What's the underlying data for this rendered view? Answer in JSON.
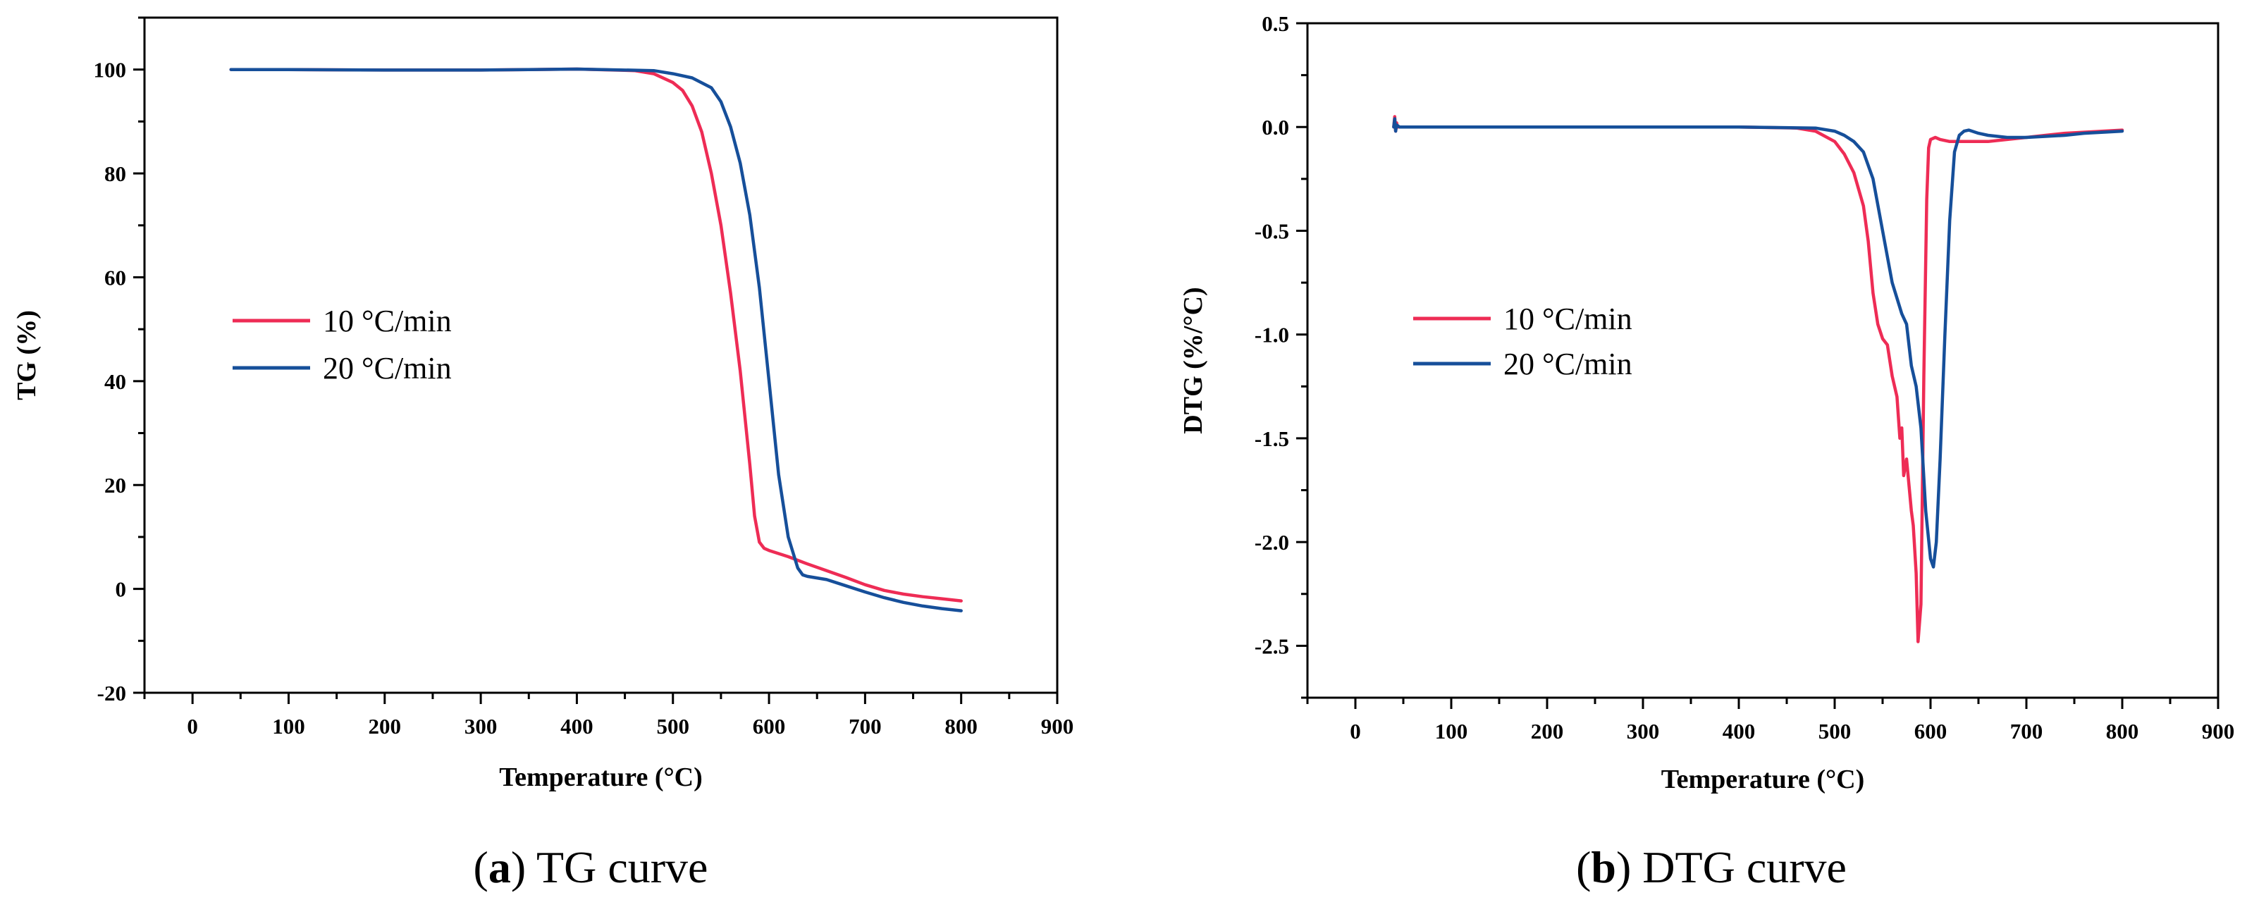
{
  "chart_data": [
    {
      "id": "a",
      "type": "line",
      "caption": {
        "letter": "a",
        "text": "TG curve"
      },
      "xlabel": "Temperature (°C)",
      "ylabel": "TG (%)",
      "xlim": [
        -50,
        900
      ],
      "ylim": [
        -20,
        110
      ],
      "xticks": [
        0,
        100,
        200,
        300,
        400,
        500,
        600,
        700,
        800,
        900
      ],
      "yticks": [
        -20,
        0,
        20,
        40,
        60,
        80,
        100
      ],
      "xtick_labels": [
        "0",
        "100",
        "200",
        "300",
        "400",
        "500",
        "600",
        "700",
        "800",
        "900"
      ],
      "ytick_labels": [
        "-20",
        "0",
        "20",
        "40",
        "60",
        "80",
        "100"
      ],
      "legend_position": "center-left",
      "series": [
        {
          "name": "10 °C/min",
          "color": "#ee2c55",
          "x": [
            40,
            100,
            200,
            300,
            400,
            460,
            480,
            500,
            510,
            520,
            530,
            540,
            550,
            560,
            570,
            580,
            585,
            590,
            595,
            600,
            610,
            620,
            640,
            660,
            680,
            700,
            720,
            740,
            760,
            780,
            800
          ],
          "y": [
            100,
            100,
            99.9,
            99.9,
            100.1,
            99.8,
            99.2,
            97.5,
            96,
            93,
            88,
            80,
            70,
            57,
            42,
            24,
            14,
            9,
            7.8,
            7.4,
            6.8,
            6.2,
            4.8,
            3.5,
            2.2,
            0.8,
            -0.3,
            -1,
            -1.5,
            -1.9,
            -2.3
          ]
        },
        {
          "name": "20 °C/min",
          "color": "#164f9a",
          "x": [
            40,
            100,
            200,
            300,
            400,
            480,
            500,
            520,
            540,
            550,
            560,
            570,
            580,
            590,
            600,
            610,
            620,
            630,
            635,
            640,
            660,
            680,
            700,
            720,
            740,
            760,
            780,
            800
          ],
          "y": [
            100,
            100,
            99.9,
            99.9,
            100.1,
            99.8,
            99.2,
            98.4,
            96.5,
            93.8,
            89,
            82,
            72,
            58,
            40,
            22,
            10,
            4,
            2.7,
            2.4,
            1.8,
            0.6,
            -0.6,
            -1.7,
            -2.6,
            -3.3,
            -3.8,
            -4.2
          ]
        }
      ]
    },
    {
      "id": "b",
      "type": "line",
      "caption": {
        "letter": "b",
        "text": "DTG curve"
      },
      "xlabel": "Temperature (°C)",
      "ylabel": "DTG (%/°C)",
      "xlim": [
        -50,
        900
      ],
      "ylim": [
        -2.75,
        0.5
      ],
      "xticks": [
        0,
        100,
        200,
        300,
        400,
        500,
        600,
        700,
        800,
        900
      ],
      "yticks": [
        -2.5,
        -2.0,
        -1.5,
        -1.0,
        -0.5,
        0.0,
        0.5
      ],
      "xtick_labels": [
        "0",
        "100",
        "200",
        "300",
        "400",
        "500",
        "600",
        "700",
        "800",
        "900"
      ],
      "ytick_labels": [
        "-2.5",
        "-2.0",
        "-1.5",
        "-1.0",
        "-0.5",
        "0.0",
        "0.5"
      ],
      "legend_position": "center-left",
      "series": [
        {
          "name": "10 °C/min",
          "color": "#ee2c55",
          "x": [
            40,
            41,
            42,
            43,
            44,
            46,
            100,
            200,
            300,
            400,
            460,
            480,
            500,
            510,
            520,
            530,
            535,
            540,
            545,
            550,
            555,
            560,
            565,
            568,
            570,
            572,
            575,
            578,
            580,
            582,
            585,
            587,
            590,
            593,
            596,
            598,
            600,
            605,
            610,
            620,
            640,
            660,
            680,
            700,
            720,
            740,
            760,
            780,
            800
          ],
          "y": [
            0,
            0.05,
            -0.02,
            0.02,
            0,
            0,
            0,
            0,
            0,
            0,
            -0.005,
            -0.02,
            -0.07,
            -0.13,
            -0.22,
            -0.38,
            -0.55,
            -0.8,
            -0.95,
            -1.02,
            -1.05,
            -1.2,
            -1.3,
            -1.5,
            -1.45,
            -1.68,
            -1.6,
            -1.75,
            -1.85,
            -1.92,
            -2.15,
            -2.48,
            -2.3,
            -1.2,
            -0.35,
            -0.1,
            -0.06,
            -0.05,
            -0.06,
            -0.07,
            -0.07,
            -0.07,
            -0.06,
            -0.05,
            -0.04,
            -0.03,
            -0.025,
            -0.02,
            -0.015
          ]
        },
        {
          "name": "20 °C/min",
          "color": "#164f9a",
          "x": [
            40,
            41,
            42,
            43,
            46,
            100,
            200,
            300,
            400,
            480,
            500,
            510,
            520,
            530,
            540,
            550,
            560,
            570,
            575,
            580,
            585,
            590,
            595,
            600,
            603,
            606,
            610,
            615,
            620,
            625,
            630,
            635,
            640,
            650,
            660,
            680,
            700,
            720,
            740,
            760,
            780,
            800
          ],
          "y": [
            0,
            0.04,
            -0.02,
            0.01,
            0,
            0,
            0,
            0,
            0,
            -0.005,
            -0.02,
            -0.04,
            -0.07,
            -0.12,
            -0.25,
            -0.5,
            -0.75,
            -0.9,
            -0.95,
            -1.15,
            -1.25,
            -1.45,
            -1.85,
            -2.08,
            -2.12,
            -2.0,
            -1.6,
            -1.0,
            -0.45,
            -0.12,
            -0.04,
            -0.02,
            -0.015,
            -0.03,
            -0.04,
            -0.05,
            -0.05,
            -0.045,
            -0.04,
            -0.03,
            -0.025,
            -0.02
          ]
        }
      ]
    }
  ]
}
